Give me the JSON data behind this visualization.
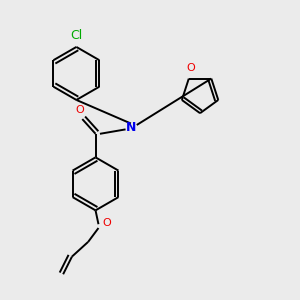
{
  "bg_color": "#ebebeb",
  "bond_color": "#000000",
  "atom_colors": {
    "N": "#0000ee",
    "O": "#ee0000",
    "Cl": "#00aa00",
    "C": "#000000"
  },
  "lw": 1.4,
  "font_size": 9
}
